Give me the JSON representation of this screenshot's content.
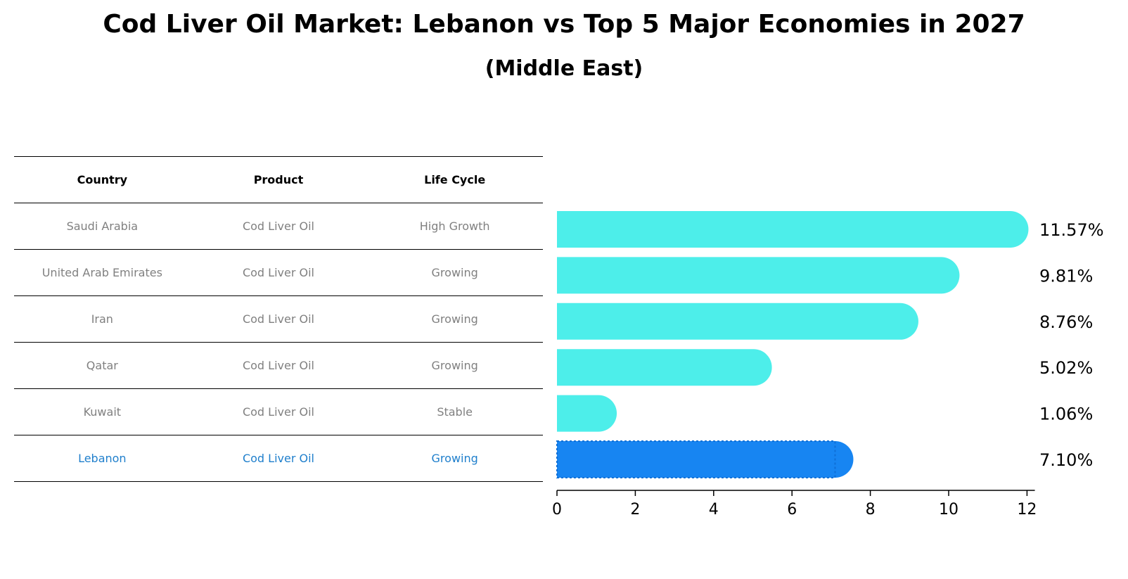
{
  "title": "Cod Liver Oil Market: Lebanon vs Top 5 Major Economies in 2027",
  "subtitle": "(Middle East)",
  "table": {
    "headers": [
      "Country",
      "Product",
      "Life Cycle"
    ],
    "rows": [
      {
        "country": "Saudi Arabia",
        "product": "Cod Liver Oil",
        "life_cycle": "High Growth"
      },
      {
        "country": "United Arab Emirates",
        "product": "Cod Liver Oil",
        "life_cycle": "Growing"
      },
      {
        "country": "Iran",
        "product": "Cod Liver Oil",
        "life_cycle": "Growing"
      },
      {
        "country": "Qatar",
        "product": "Cod Liver Oil",
        "life_cycle": "Growing"
      },
      {
        "country": "Kuwait",
        "product": "Cod Liver Oil",
        "life_cycle": "Stable"
      },
      {
        "country": "Lebanon",
        "product": "Cod Liver Oil",
        "life_cycle": "Growing"
      }
    ],
    "highlight_color": "#1f7fcc",
    "text_color": "#808080"
  },
  "chart_data": {
    "type": "bar",
    "orientation": "horizontal",
    "categories": [
      "Saudi Arabia",
      "United Arab Emirates",
      "Iran",
      "Qatar",
      "Kuwait",
      "Lebanon"
    ],
    "values": [
      11.57,
      9.81,
      8.76,
      5.02,
      1.06,
      7.1
    ],
    "value_labels": [
      "11.57%",
      "9.81%",
      "8.76%",
      "5.02%",
      "1.06%",
      "7.10%"
    ],
    "colors": [
      "#4deeea",
      "#4deeea",
      "#4deeea",
      "#4deeea",
      "#4deeea",
      "#1785f2"
    ],
    "xlim": [
      0,
      12.2
    ],
    "xticks": [
      0,
      2,
      4,
      6,
      8,
      10,
      12
    ],
    "grid": false,
    "title": "",
    "xlabel": "",
    "ylabel": ""
  }
}
